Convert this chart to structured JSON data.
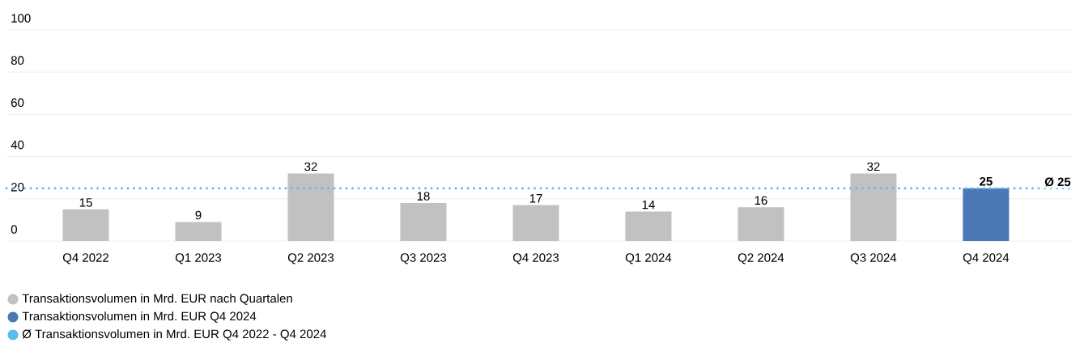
{
  "chart_data": {
    "type": "bar",
    "categories": [
      "Q4 2022",
      "Q1 2023",
      "Q2 2023",
      "Q3 2023",
      "Q4 2023",
      "Q1 2024",
      "Q2 2024",
      "Q3 2024",
      "Q4 2024"
    ],
    "series": [
      {
        "name": "Transaktionsvolumen in Mrd. EUR nach Quartalen",
        "color": "#c0c1c0",
        "values": [
          15,
          9,
          32,
          18,
          17,
          14,
          16,
          32,
          null
        ],
        "value_labels": [
          "15",
          "9",
          "32",
          "18",
          "17",
          "14",
          "16",
          "32",
          null
        ]
      },
      {
        "name": "Transaktionsvolumen in Mrd. EUR Q4 2024",
        "color": "#4a78b5",
        "values": [
          null,
          null,
          null,
          null,
          null,
          null,
          null,
          null,
          25
        ],
        "value_labels": [
          null,
          null,
          null,
          null,
          null,
          null,
          null,
          null,
          "25"
        ]
      }
    ],
    "ylim": [
      0,
      100
    ],
    "yticks": [
      0,
      20,
      40,
      60,
      80,
      100
    ],
    "grid": "y",
    "legend": "bottom",
    "ref_lines": [
      {
        "axis": "y",
        "value": 25,
        "label": "Ø 25",
        "color": "#5bbcf0",
        "line_style": "dotted"
      }
    ],
    "annotations": [
      "Ø Transaktionsvolumen in Mrd. EUR Q4 2022 - Q4 2024"
    ]
  }
}
